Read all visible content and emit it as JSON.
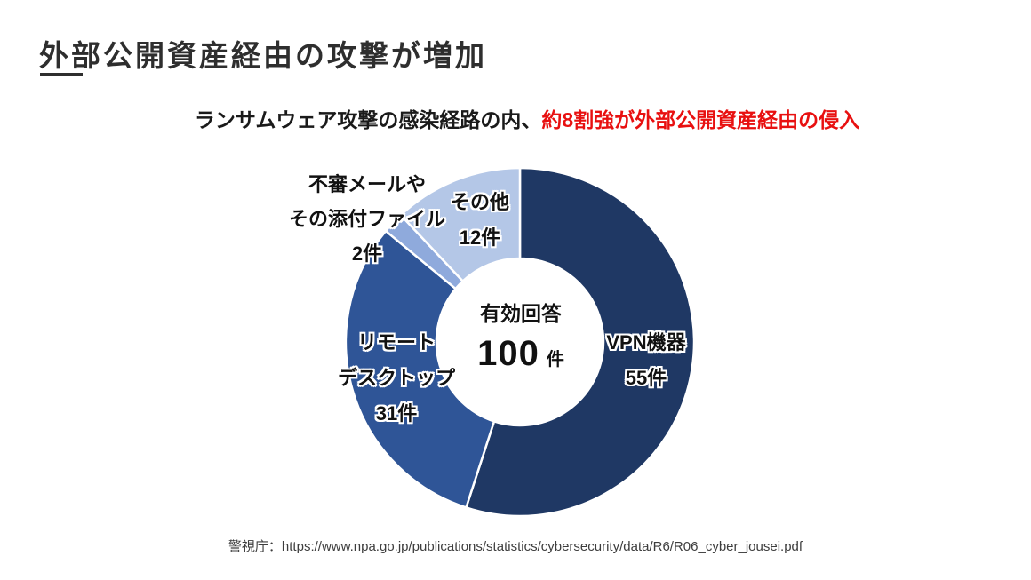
{
  "title": {
    "text": "外部公開資産経由の攻撃が増加"
  },
  "subtitle": {
    "normal": "ランサムウェア攻撃の感染経路の内、",
    "highlight": "約8割強が外部公開資産経由の侵入",
    "highlight_color": "#e81010"
  },
  "source": {
    "text": "警視庁：https://www.npa.go.jp/publications/statistics/cybersecurity/data/R6/R06_cyber_jousei.pdf"
  },
  "chart_data": {
    "type": "pie",
    "variant": "donut",
    "direction": "clockwise",
    "start_angle_deg": 0,
    "total": 100,
    "separator_color": "#ffffff",
    "center_label": {
      "line1": "有効回答",
      "value": "100",
      "unit": "件"
    },
    "segments": [
      {
        "id": "vpn",
        "label": "VPN機器",
        "value": 55,
        "unit": "件",
        "color": "#1f3864",
        "label_lines": {
          "l1": "VPN機器",
          "l2": "55件"
        },
        "label_position": "inside-right"
      },
      {
        "id": "remote-desktop",
        "label": "リモートデスクトップ",
        "value": 31,
        "unit": "件",
        "color": "#2f5597",
        "label_lines": {
          "l1": "リモート",
          "l2": "デスクトップ",
          "l3": "31件"
        },
        "label_position": "inside-left"
      },
      {
        "id": "suspicious-mail",
        "label": "不審メールやその添付ファイル",
        "value": 2,
        "unit": "件",
        "color": "#8faadc",
        "label_lines": {
          "l1": "不審メールや",
          "l2": "その添付ファイル",
          "l3": "2件"
        },
        "label_position": "outside-top-left"
      },
      {
        "id": "other",
        "label": "その他",
        "value": 12,
        "unit": "件",
        "color": "#b4c7e7",
        "label_lines": {
          "l1": "その他",
          "l2": "12件"
        },
        "label_position": "inside-top"
      }
    ]
  }
}
